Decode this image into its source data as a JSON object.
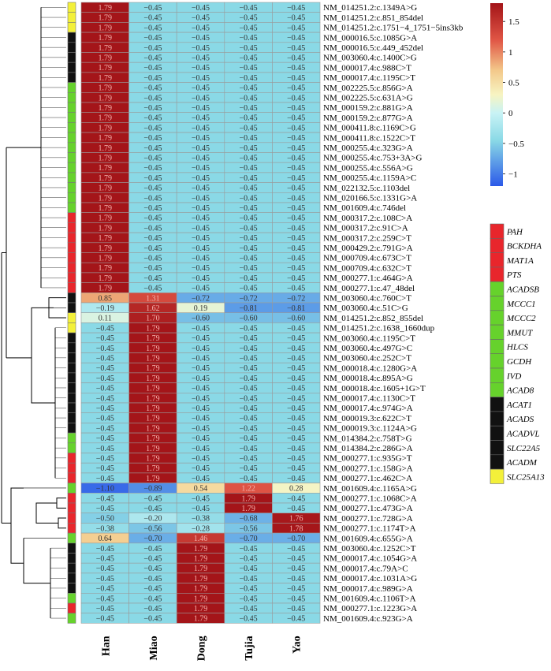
{
  "chart_data": {
    "type": "heatmap",
    "columns": [
      "Han",
      "Miao",
      "Dong",
      "Tujia",
      "Yao"
    ],
    "rows": [
      {
        "label": "NM_014251.2:c.1349A>G",
        "gene": "SLC25A13",
        "values": [
          1.79,
          -0.45,
          -0.45,
          -0.45,
          -0.45
        ]
      },
      {
        "label": "NM_014251.2:c.851_854del",
        "gene": "SLC25A13",
        "values": [
          1.79,
          -0.45,
          -0.45,
          -0.45,
          -0.45
        ]
      },
      {
        "label": "NM_014251.2:c.1751−4_1751−5ins3kb",
        "gene": "SLC25A13",
        "values": [
          1.79,
          -0.45,
          -0.45,
          -0.45,
          -0.45
        ]
      },
      {
        "label": "NM_000016.5:c.1085G>A",
        "gene": "ACADM",
        "values": [
          1.79,
          -0.45,
          -0.45,
          -0.45,
          -0.45
        ]
      },
      {
        "label": "NM_000016.5:c.449_452del",
        "gene": "ACADM",
        "values": [
          1.79,
          -0.45,
          -0.45,
          -0.45,
          -0.45
        ]
      },
      {
        "label": "NM_003060.4:c.1400C>G",
        "gene": "ACADM",
        "values": [
          1.79,
          -0.45,
          -0.45,
          -0.45,
          -0.45
        ]
      },
      {
        "label": "NM_000017.4:c.988C>T",
        "gene": "ACADM",
        "values": [
          1.79,
          -0.45,
          -0.45,
          -0.45,
          -0.45
        ]
      },
      {
        "label": "NM_000017.4:c.1195C>T",
        "gene": "ACADM",
        "values": [
          1.79,
          -0.45,
          -0.45,
          -0.45,
          -0.45
        ]
      },
      {
        "label": "NM_002225.5:c.856G>A",
        "gene": "ACADSB",
        "values": [
          1.79,
          -0.45,
          -0.45,
          -0.45,
          -0.45
        ]
      },
      {
        "label": "NM_002225.5:c.631A>G",
        "gene": "ACADSB",
        "values": [
          1.79,
          -0.45,
          -0.45,
          -0.45,
          -0.45
        ]
      },
      {
        "label": "NM_000159.2:c.881G>A",
        "gene": "ACADSB",
        "values": [
          1.79,
          -0.45,
          -0.45,
          -0.45,
          -0.45
        ]
      },
      {
        "label": "NM_000159.2:c.877G>A",
        "gene": "ACADSB",
        "values": [
          1.79,
          -0.45,
          -0.45,
          -0.45,
          -0.45
        ]
      },
      {
        "label": "NM_000411.8:c.1169C>G",
        "gene": "ACADSB",
        "values": [
          1.79,
          -0.45,
          -0.45,
          -0.45,
          -0.45
        ]
      },
      {
        "label": "NM_000411.8:c.1522C>T",
        "gene": "ACADSB",
        "values": [
          1.79,
          -0.45,
          -0.45,
          -0.45,
          -0.45
        ]
      },
      {
        "label": "NM_000255.4:c.323G>A",
        "gene": "ACADSB",
        "values": [
          1.79,
          -0.45,
          -0.45,
          -0.45,
          -0.45
        ]
      },
      {
        "label": "NM_000255.4:c.753+3A>G",
        "gene": "ACADSB",
        "values": [
          1.79,
          -0.45,
          -0.45,
          -0.45,
          -0.45
        ]
      },
      {
        "label": "NM_000255.4:c.556A>G",
        "gene": "ACADSB",
        "values": [
          1.79,
          -0.45,
          -0.45,
          -0.45,
          -0.45
        ]
      },
      {
        "label": "NM_000255.4:c.1159A>C",
        "gene": "ACADSB",
        "values": [
          1.79,
          -0.45,
          -0.45,
          -0.45,
          -0.45
        ]
      },
      {
        "label": "NM_022132.5:c.1103del",
        "gene": "ACADSB",
        "values": [
          1.79,
          -0.45,
          -0.45,
          -0.45,
          -0.45
        ]
      },
      {
        "label": "NM_020166.5:c.1331G>A",
        "gene": "ACADSB",
        "values": [
          1.79,
          -0.45,
          -0.45,
          -0.45,
          -0.45
        ]
      },
      {
        "label": "NM_001609.4:c.746del",
        "gene": "ACADSB",
        "values": [
          1.79,
          -0.45,
          -0.45,
          -0.45,
          -0.45
        ]
      },
      {
        "label": "NM_000317.2:c.108C>A",
        "gene": "PAH",
        "values": [
          1.79,
          -0.45,
          -0.45,
          -0.45,
          -0.45
        ]
      },
      {
        "label": "NM_000317.2:c.91C>A",
        "gene": "PAH",
        "values": [
          1.79,
          -0.45,
          -0.45,
          -0.45,
          -0.45
        ]
      },
      {
        "label": "NM_000317.2:c.259C>T",
        "gene": "PAH",
        "values": [
          1.79,
          -0.45,
          -0.45,
          -0.45,
          -0.45
        ]
      },
      {
        "label": "NM_000429.2:c.791G>A",
        "gene": "PAH",
        "values": [
          1.79,
          -0.45,
          -0.45,
          -0.45,
          -0.45
        ]
      },
      {
        "label": "NM_000709.4:c.673C>T",
        "gene": "PAH",
        "values": [
          1.79,
          -0.45,
          -0.45,
          -0.45,
          -0.45
        ]
      },
      {
        "label": "NM_000709.4:c.632C>T",
        "gene": "PAH",
        "values": [
          1.79,
          -0.45,
          -0.45,
          -0.45,
          -0.45
        ]
      },
      {
        "label": "NM_000277.1:c.464G>A",
        "gene": "PAH",
        "values": [
          1.79,
          -0.45,
          -0.45,
          -0.45,
          -0.45
        ]
      },
      {
        "label": "NM_000277.1:c.47_48del",
        "gene": "PAH",
        "values": [
          1.79,
          -0.45,
          -0.45,
          -0.45,
          -0.45
        ]
      },
      {
        "label": "NM_003060.4:c.760C>T",
        "gene": "ACADM",
        "values": [
          0.85,
          1.31,
          -0.72,
          -0.72,
          -0.72
        ]
      },
      {
        "label": "NM_003060.4:c.51C>G",
        "gene": "ACADM",
        "values": [
          -0.19,
          1.62,
          0.19,
          -0.81,
          -0.81
        ]
      },
      {
        "label": "NM_014251.2:c.852_855del",
        "gene": "SLC25A13",
        "values": [
          0.11,
          1.7,
          -0.6,
          -0.6,
          -0.6
        ]
      },
      {
        "label": "NM_014251.2:c.1638_1660dup",
        "gene": "SLC25A13",
        "values": [
          -0.45,
          1.79,
          -0.45,
          -0.45,
          -0.45
        ]
      },
      {
        "label": "NM_003060.4:c.1195C>T",
        "gene": "ACADM",
        "values": [
          -0.45,
          1.79,
          -0.45,
          -0.45,
          -0.45
        ]
      },
      {
        "label": "NM_003060.4:c.497G>C",
        "gene": "ACADM",
        "values": [
          -0.45,
          1.79,
          -0.45,
          -0.45,
          -0.45
        ]
      },
      {
        "label": "NM_003060.4:c.252C>T",
        "gene": "ACADM",
        "values": [
          -0.45,
          1.79,
          -0.45,
          -0.45,
          -0.45
        ]
      },
      {
        "label": "NM_000018.4:c.1280G>A",
        "gene": "ACADM",
        "values": [
          -0.45,
          1.79,
          -0.45,
          -0.45,
          -0.45
        ]
      },
      {
        "label": "NM_000018.4:c.895A>G",
        "gene": "ACADM",
        "values": [
          -0.45,
          1.79,
          -0.45,
          -0.45,
          -0.45
        ]
      },
      {
        "label": "NM_000018.4:c.1605+1G>T",
        "gene": "ACADM",
        "values": [
          -0.45,
          1.79,
          -0.45,
          -0.45,
          -0.45
        ]
      },
      {
        "label": "NM_000017.4:c.1130C>T",
        "gene": "ACADM",
        "values": [
          -0.45,
          1.79,
          -0.45,
          -0.45,
          -0.45
        ]
      },
      {
        "label": "NM_000017.4:c.974G>A",
        "gene": "ACADM",
        "values": [
          -0.45,
          1.79,
          -0.45,
          -0.45,
          -0.45
        ]
      },
      {
        "label": "NM_000019.3:c.622C>T",
        "gene": "ACADM",
        "values": [
          -0.45,
          1.79,
          -0.45,
          -0.45,
          -0.45
        ]
      },
      {
        "label": "NM_000019.3:c.1124A>G",
        "gene": "ACADM",
        "values": [
          -0.45,
          1.79,
          -0.45,
          -0.45,
          -0.45
        ]
      },
      {
        "label": "NM_014384.2:c.758T>G",
        "gene": "ACADSB",
        "values": [
          -0.45,
          1.79,
          -0.45,
          -0.45,
          -0.45
        ]
      },
      {
        "label": "NM_014384.2:c.286G>A",
        "gene": "ACADSB",
        "values": [
          -0.45,
          1.79,
          -0.45,
          -0.45,
          -0.45
        ]
      },
      {
        "label": "NM_000277.1:c.935G>T",
        "gene": "PAH",
        "values": [
          -0.45,
          1.79,
          -0.45,
          -0.45,
          -0.45
        ]
      },
      {
        "label": "NM_000277.1:c.158G>A",
        "gene": "PAH",
        "values": [
          -0.45,
          1.79,
          -0.45,
          -0.45,
          -0.45
        ]
      },
      {
        "label": "NM_000277.1:c.462C>A",
        "gene": "PAH",
        "values": [
          -0.45,
          1.79,
          -0.45,
          -0.45,
          -0.45
        ]
      },
      {
        "label": "NM_001609.4:c.1165A>G",
        "gene": "ACADSB",
        "values": [
          -1.1,
          -0.89,
          0.54,
          1.22,
          0.28
        ]
      },
      {
        "label": "NM_000277.1:c.1068C>A",
        "gene": "PAH",
        "values": [
          -0.45,
          -0.45,
          -0.45,
          1.79,
          -0.45
        ]
      },
      {
        "label": "NM_000277.1:c.473G>A",
        "gene": "PAH",
        "values": [
          -0.45,
          -0.45,
          -0.45,
          1.79,
          -0.45
        ]
      },
      {
        "label": "NM_000277.1:c.728G>A",
        "gene": "PAH",
        "values": [
          -0.5,
          -0.2,
          -0.38,
          -0.68,
          1.76
        ]
      },
      {
        "label": "NM_000277.1:c.1174T>A",
        "gene": "PAH",
        "values": [
          -0.38,
          -0.56,
          -0.28,
          -0.56,
          1.78
        ]
      },
      {
        "label": "NM_001609.4:c.655G>A",
        "gene": "ACADSB",
        "values": [
          0.64,
          -0.7,
          1.46,
          -0.7,
          -0.7
        ]
      },
      {
        "label": "NM_003060.4:c.1252C>T",
        "gene": "ACADM",
        "values": [
          -0.45,
          -0.45,
          1.79,
          -0.45,
          -0.45
        ]
      },
      {
        "label": "NM_000017.4:c.1054G>A",
        "gene": "ACADM",
        "values": [
          -0.45,
          -0.45,
          1.79,
          -0.45,
          -0.45
        ]
      },
      {
        "label": "NM_000017.4:c.79A>C",
        "gene": "ACADM",
        "values": [
          -0.45,
          -0.45,
          1.79,
          -0.45,
          -0.45
        ]
      },
      {
        "label": "NM_000017.4:c.1031A>G",
        "gene": "ACADM",
        "values": [
          -0.45,
          -0.45,
          1.79,
          -0.45,
          -0.45
        ]
      },
      {
        "label": "NM_000017.4:c.989G>A",
        "gene": "ACADM",
        "values": [
          -0.45,
          -0.45,
          1.79,
          -0.45,
          -0.45
        ]
      },
      {
        "label": "NM_001609.4:c.1106T>A",
        "gene": "ACADSB",
        "values": [
          -0.45,
          -0.45,
          1.79,
          -0.45,
          -0.45
        ]
      },
      {
        "label": "NM_000277.1:c.1223G>A",
        "gene": "PAH",
        "values": [
          -0.45,
          -0.45,
          1.79,
          -0.45,
          -0.45
        ]
      },
      {
        "label": "NM_001609.4:c.923G>A",
        "gene": "ACADSB",
        "values": [
          -0.45,
          -0.45,
          1.79,
          -0.45,
          -0.45
        ]
      }
    ],
    "colorbar": {
      "min": -1.2,
      "max": 1.8,
      "ticks": [
        -1,
        -0.5,
        0,
        0.5,
        1,
        1.5
      ],
      "tick_labels": [
        "−1",
        "−0.5",
        "0",
        "0.5",
        "1",
        "1.5"
      ],
      "stops": [
        {
          "value": -1.2,
          "color": "#2b59e8"
        },
        {
          "value": -0.45,
          "color": "#8ad9e6"
        },
        {
          "value": 0,
          "color": "#c9f3f5"
        },
        {
          "value": 0.3,
          "color": "#f7f4c2"
        },
        {
          "value": 0.7,
          "color": "#f3c88a"
        },
        {
          "value": 1.2,
          "color": "#e05545"
        },
        {
          "value": 1.8,
          "color": "#a31418"
        }
      ]
    },
    "gene_legend": [
      {
        "name": "PAH",
        "color": "#e8262c"
      },
      {
        "name": "BCKDHA",
        "color": "#e8262c"
      },
      {
        "name": "MAT1A",
        "color": "#e8262c"
      },
      {
        "name": "PTS",
        "color": "#e8262c"
      },
      {
        "name": "ACADSB",
        "color": "#66d22c"
      },
      {
        "name": "MCCC1",
        "color": "#66d22c"
      },
      {
        "name": "MCCC2",
        "color": "#66d22c"
      },
      {
        "name": "MMUT",
        "color": "#66d22c"
      },
      {
        "name": "HLCS",
        "color": "#66d22c"
      },
      {
        "name": "GCDH",
        "color": "#66d22c"
      },
      {
        "name": "IVD",
        "color": "#66d22c"
      },
      {
        "name": "ACAD8",
        "color": "#66d22c"
      },
      {
        "name": "ACAT1",
        "color": "#111111"
      },
      {
        "name": "ACADS",
        "color": "#111111"
      },
      {
        "name": "ACADVL",
        "color": "#111111"
      },
      {
        "name": "SLC22A5",
        "color": "#111111"
      },
      {
        "name": "ACADM",
        "color": "#111111"
      },
      {
        "name": "SLC25A13",
        "color": "#f3f03a"
      }
    ],
    "gene_colors": {
      "PAH": "#e8262c",
      "ACADSB": "#66d22c",
      "ACADM": "#111111",
      "SLC25A13": "#f3f03a"
    }
  }
}
